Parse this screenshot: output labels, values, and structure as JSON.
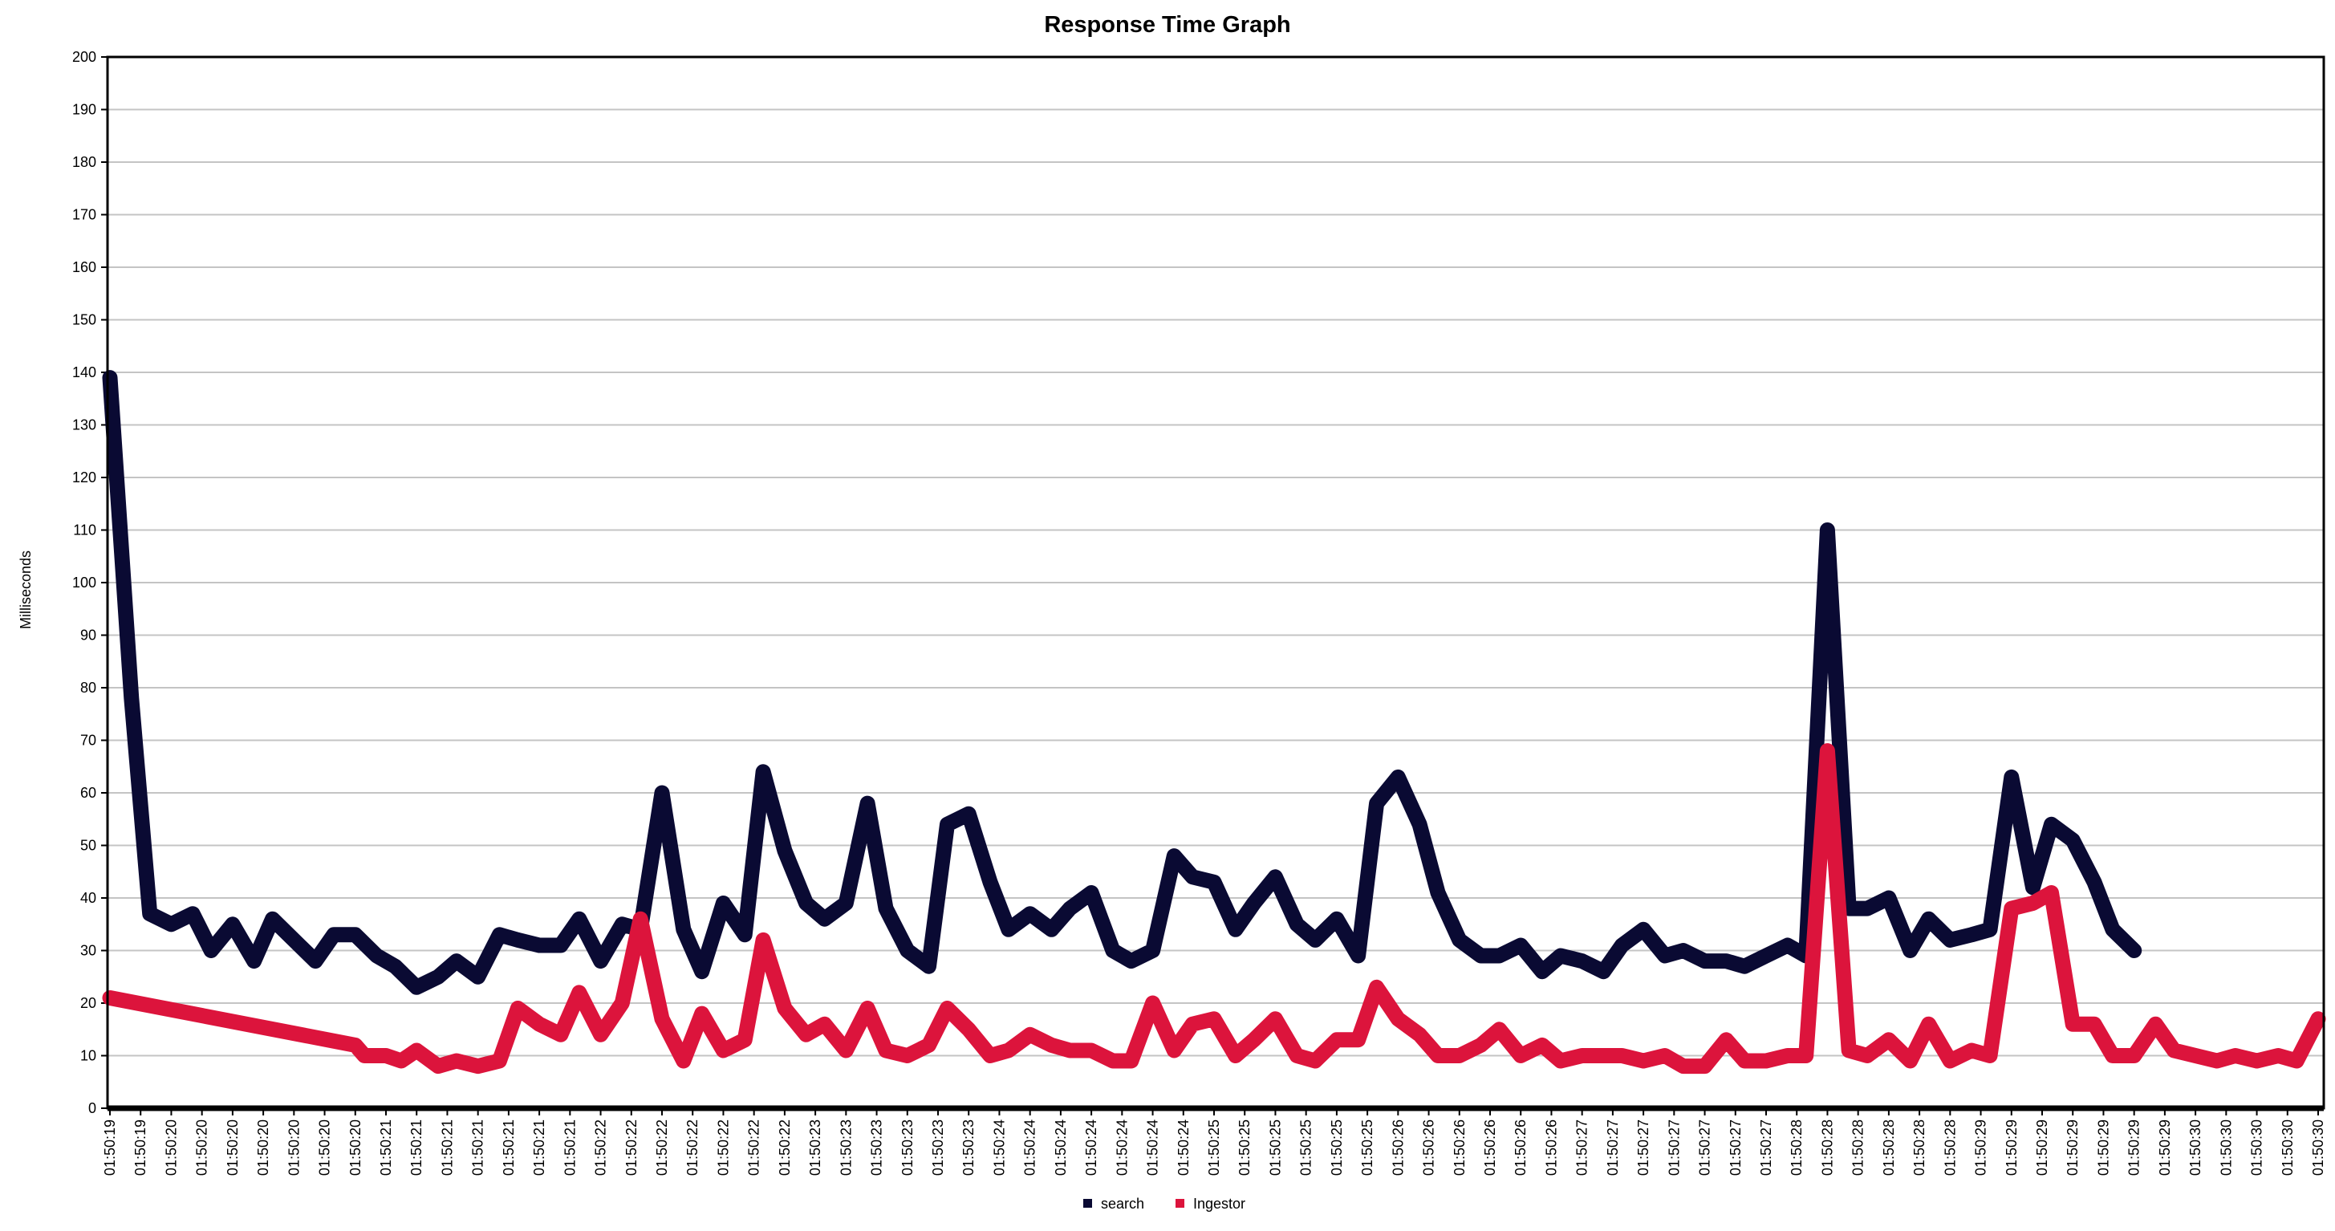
{
  "chart_data": {
    "type": "line",
    "title": "Response Time Graph",
    "xlabel": "",
    "ylabel": "Milliseconds",
    "ylim": [
      0,
      200
    ],
    "yticks": [
      0,
      10,
      20,
      30,
      40,
      50,
      60,
      70,
      80,
      90,
      100,
      110,
      120,
      130,
      140,
      150,
      160,
      170,
      180,
      190,
      200
    ],
    "grid": true,
    "legend_position": "bottom",
    "categories": [
      "01:50:19",
      "01:50:19",
      "01:50:20",
      "01:50:20",
      "01:50:20",
      "01:50:20",
      "01:50:20",
      "01:50:20",
      "01:50:20",
      "01:50:21",
      "01:50:21",
      "01:50:21",
      "01:50:21",
      "01:50:21",
      "01:50:21",
      "01:50:21",
      "01:50:22",
      "01:50:22",
      "01:50:22",
      "01:50:22",
      "01:50:22",
      "01:50:22",
      "01:50:22",
      "01:50:23",
      "01:50:23",
      "01:50:23",
      "01:50:23",
      "01:50:23",
      "01:50:23",
      "01:50:24",
      "01:50:24",
      "01:50:24",
      "01:50:24",
      "01:50:24",
      "01:50:24",
      "01:50:24",
      "01:50:25",
      "01:50:25",
      "01:50:25",
      "01:50:25",
      "01:50:25",
      "01:50:25",
      "01:50:26",
      "01:50:26",
      "01:50:26",
      "01:50:26",
      "01:50:26",
      "01:50:26",
      "01:50:27",
      "01:50:27",
      "01:50:27",
      "01:50:27",
      "01:50:27",
      "01:50:27",
      "01:50:27",
      "01:50:28",
      "01:50:28",
      "01:50:28",
      "01:50:28",
      "01:50:28",
      "01:50:28",
      "01:50:29",
      "01:50:29",
      "01:50:29",
      "01:50:29",
      "01:50:29",
      "01:50:29",
      "01:50:29",
      "01:50:30",
      "01:50:30",
      "01:50:30",
      "01:50:30",
      "01:50:30"
    ],
    "series": [
      {
        "name": "search",
        "color": "#0a0a33",
        "points": [
          [
            0,
            139
          ],
          [
            0.7,
            78
          ],
          [
            1.3,
            37
          ],
          [
            2,
            35
          ],
          [
            2.7,
            37
          ],
          [
            3.3,
            30
          ],
          [
            4,
            35
          ],
          [
            4.7,
            28
          ],
          [
            5.3,
            36
          ],
          [
            6,
            32
          ],
          [
            6.7,
            28
          ],
          [
            7.3,
            33
          ],
          [
            8,
            33
          ],
          [
            8.7,
            29
          ],
          [
            9.3,
            27
          ],
          [
            10,
            23
          ],
          [
            10.7,
            25
          ],
          [
            11.3,
            28
          ],
          [
            12,
            25
          ],
          [
            12.7,
            33
          ],
          [
            13.3,
            32
          ],
          [
            14,
            31
          ],
          [
            14.7,
            31
          ],
          [
            15.3,
            36
          ],
          [
            16,
            28
          ],
          [
            16.7,
            35
          ],
          [
            17.3,
            34
          ],
          [
            18,
            60
          ],
          [
            18.7,
            34
          ],
          [
            19.3,
            26
          ],
          [
            20,
            39
          ],
          [
            20.7,
            33
          ],
          [
            21.3,
            64
          ],
          [
            22,
            49
          ],
          [
            22.7,
            39
          ],
          [
            23.3,
            36
          ],
          [
            24,
            39
          ],
          [
            24.7,
            58
          ],
          [
            25.3,
            38
          ],
          [
            26,
            30
          ],
          [
            26.7,
            27
          ],
          [
            27.3,
            54
          ],
          [
            28,
            56
          ],
          [
            28.7,
            43
          ],
          [
            29.3,
            34
          ],
          [
            30,
            37
          ],
          [
            30.7,
            34
          ],
          [
            31.3,
            38
          ],
          [
            32,
            41
          ],
          [
            32.7,
            30
          ],
          [
            33.3,
            28
          ],
          [
            34,
            30
          ],
          [
            34.7,
            48
          ],
          [
            35.3,
            44
          ],
          [
            36,
            43
          ],
          [
            36.7,
            34
          ],
          [
            37.3,
            39
          ],
          [
            38,
            44
          ],
          [
            38.7,
            35
          ],
          [
            39.3,
            32
          ],
          [
            40,
            36
          ],
          [
            40.7,
            29
          ],
          [
            41.3,
            58
          ],
          [
            42,
            63
          ],
          [
            42.7,
            54
          ],
          [
            43.3,
            41
          ],
          [
            44,
            32
          ],
          [
            44.7,
            29
          ],
          [
            45.3,
            29
          ],
          [
            46,
            31
          ],
          [
            46.7,
            26
          ],
          [
            47.3,
            29
          ],
          [
            48,
            28
          ],
          [
            48.7,
            26
          ],
          [
            49.3,
            31
          ],
          [
            50,
            34
          ],
          [
            50.7,
            29
          ],
          [
            51.3,
            30
          ],
          [
            52,
            28
          ],
          [
            52.7,
            28
          ],
          [
            53.3,
            27
          ],
          [
            54,
            29
          ],
          [
            54.7,
            31
          ],
          [
            55.3,
            29
          ],
          [
            56,
            110
          ],
          [
            56.7,
            38
          ],
          [
            57.3,
            38
          ],
          [
            58,
            40
          ],
          [
            58.7,
            30
          ],
          [
            59.3,
            36
          ],
          [
            60,
            32
          ],
          [
            60.7,
            33
          ],
          [
            61.3,
            34
          ],
          [
            62,
            63
          ],
          [
            62.7,
            42
          ],
          [
            63.3,
            54
          ],
          [
            64,
            51
          ],
          [
            64.7,
            43
          ],
          [
            65.3,
            34
          ],
          [
            66,
            30
          ]
        ]
      },
      {
        "name": "Ingestor",
        "color": "#dc143c",
        "points": [
          [
            0,
            21
          ],
          [
            8,
            12
          ],
          [
            8.3,
            10
          ],
          [
            9,
            10
          ],
          [
            9.5,
            9
          ],
          [
            10,
            11
          ],
          [
            10.7,
            8
          ],
          [
            11.3,
            9
          ],
          [
            12,
            8
          ],
          [
            12.7,
            9
          ],
          [
            13.3,
            19
          ],
          [
            14,
            16
          ],
          [
            14.7,
            14
          ],
          [
            15.3,
            22
          ],
          [
            16,
            14
          ],
          [
            16.7,
            20
          ],
          [
            17.3,
            36
          ],
          [
            18,
            17
          ],
          [
            18.7,
            9
          ],
          [
            19.3,
            18
          ],
          [
            20,
            11
          ],
          [
            20.7,
            13
          ],
          [
            21.3,
            32
          ],
          [
            22,
            19
          ],
          [
            22.7,
            14
          ],
          [
            23.3,
            16
          ],
          [
            24,
            11
          ],
          [
            24.7,
            19
          ],
          [
            25.3,
            11
          ],
          [
            26,
            10
          ],
          [
            26.7,
            12
          ],
          [
            27.3,
            19
          ],
          [
            28,
            15
          ],
          [
            28.7,
            10
          ],
          [
            29.3,
            11
          ],
          [
            30,
            14
          ],
          [
            30.7,
            12
          ],
          [
            31.3,
            11
          ],
          [
            32,
            11
          ],
          [
            32.7,
            9
          ],
          [
            33.3,
            9
          ],
          [
            34,
            20
          ],
          [
            34.7,
            11
          ],
          [
            35.3,
            16
          ],
          [
            36,
            17
          ],
          [
            36.7,
            10
          ],
          [
            37.3,
            13
          ],
          [
            38,
            17
          ],
          [
            38.7,
            10
          ],
          [
            39.3,
            9
          ],
          [
            40,
            13
          ],
          [
            40.7,
            13
          ],
          [
            41.3,
            23
          ],
          [
            42,
            17
          ],
          [
            42.7,
            14
          ],
          [
            43.3,
            10
          ],
          [
            44,
            10
          ],
          [
            44.7,
            12
          ],
          [
            45.3,
            15
          ],
          [
            46,
            10
          ],
          [
            46.7,
            12
          ],
          [
            47.3,
            9
          ],
          [
            48,
            10
          ],
          [
            48.7,
            10
          ],
          [
            49.3,
            10
          ],
          [
            50,
            9
          ],
          [
            50.7,
            10
          ],
          [
            51.3,
            8
          ],
          [
            52,
            8
          ],
          [
            52.7,
            13
          ],
          [
            53.3,
            9
          ],
          [
            54,
            9
          ],
          [
            54.7,
            10
          ],
          [
            55.3,
            10
          ],
          [
            56,
            68
          ],
          [
            56.7,
            11
          ],
          [
            57.3,
            10
          ],
          [
            58,
            13
          ],
          [
            58.7,
            9
          ],
          [
            59.3,
            16
          ],
          [
            60,
            9
          ],
          [
            60.7,
            11
          ],
          [
            61.3,
            10
          ],
          [
            62,
            38
          ],
          [
            62.7,
            39
          ],
          [
            63.3,
            41
          ],
          [
            64,
            16
          ],
          [
            64.7,
            16
          ],
          [
            65.3,
            10
          ],
          [
            66,
            10
          ],
          [
            66.7,
            16
          ],
          [
            67.3,
            11
          ],
          [
            68,
            10
          ],
          [
            68.7,
            9
          ],
          [
            69.3,
            10
          ],
          [
            70,
            9
          ],
          [
            70.7,
            10
          ],
          [
            71.3,
            9
          ],
          [
            72,
            17
          ]
        ]
      }
    ]
  }
}
